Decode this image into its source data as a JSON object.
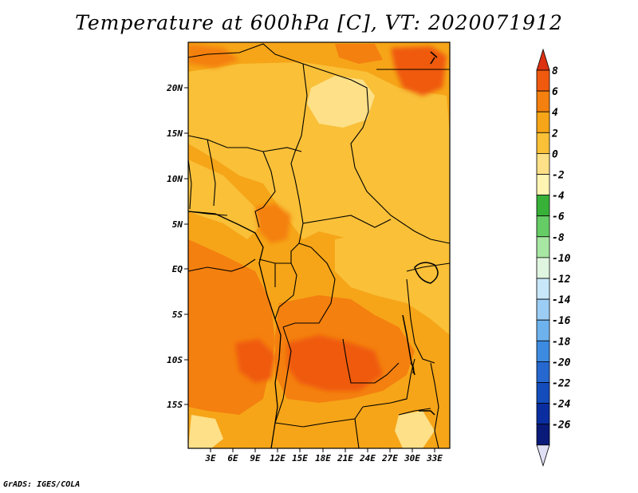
{
  "title": "Temperature at 600hPa [C], VT: 2020071912",
  "credit": "GrADS: IGES/COLA",
  "map": {
    "lat_labels": [
      "20N",
      "15N",
      "10N",
      "5N",
      "EQ",
      "5S",
      "10S",
      "15S"
    ],
    "lon_labels": [
      "3E",
      "6E",
      "9E",
      "12E",
      "15E",
      "18E",
      "21E",
      "24E",
      "27E",
      "30E",
      "33E"
    ]
  },
  "colorbar": {
    "labels": [
      "8",
      "6",
      "4",
      "2",
      "0",
      "-2",
      "-4",
      "-6",
      "-8",
      "-10",
      "-12",
      "-14",
      "-16",
      "-18",
      "-20",
      "-22",
      "-24",
      "-26"
    ],
    "colors": [
      "#dc3212",
      "#ef5a0f",
      "#f4800f",
      "#f6a518",
      "#f9c038",
      "#fde087",
      "#fff5b2",
      "#38b138",
      "#66cd66",
      "#a8e6a4",
      "#e0f5e0",
      "#c8e8fa",
      "#9ccdf4",
      "#6eb2ed",
      "#3c8be0",
      "#2668cf",
      "#144cbb",
      "#0a2ea0",
      "#0a1a78",
      "#e0e0f5"
    ]
  }
}
